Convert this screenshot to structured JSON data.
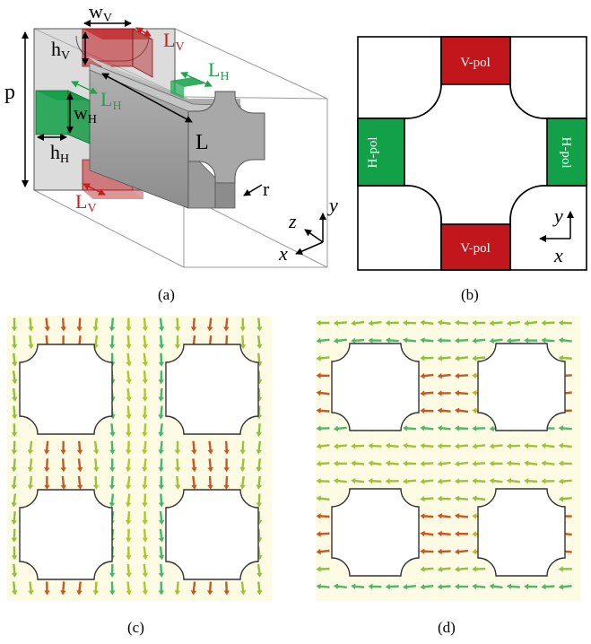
{
  "panels": {
    "a": {
      "caption": "(a)",
      "labels": {
        "wV_main": "w",
        "wV_sub": "V",
        "hV_main": "h",
        "hV_sub": "V",
        "wH_main": "w",
        "wH_sub": "H",
        "hH_main": "h",
        "hH_sub": "H",
        "LV_top_main": "L",
        "LV_top_sub": "V",
        "LV_bot_main": "L",
        "LV_bot_sub": "V",
        "LH_top_main": "L",
        "LH_top_sub": "H",
        "LH_mid_main": "L",
        "LH_mid_sub": "H",
        "p": "p",
        "L": "L",
        "r": "r",
        "axis_z": "z",
        "axis_y": "y",
        "axis_x": "x"
      }
    },
    "b": {
      "caption": "(b)",
      "port_top": "V-pol",
      "port_bottom": "V-pol",
      "port_left": "H-pol",
      "port_right": "H-pol",
      "axis_y": "y",
      "axis_x": "x"
    },
    "c": {
      "caption": "(c)",
      "field": "vertical"
    },
    "d": {
      "caption": "(d)",
      "field": "horizontal"
    }
  },
  "colors": {
    "vport": "#c0161c",
    "hport": "#12a048",
    "field_bg": "#fdfbe4",
    "label_red": "#cc1a1a",
    "label_green": "#1ea24b"
  }
}
